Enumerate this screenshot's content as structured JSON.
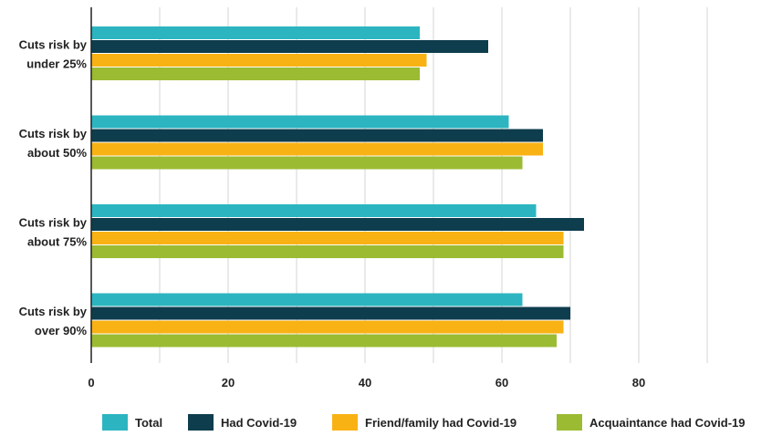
{
  "chart_data": {
    "type": "bar",
    "orientation": "horizontal",
    "categories": [
      [
        "Cuts risk by",
        "under 25%"
      ],
      [
        "Cuts risk by",
        "about 50%"
      ],
      [
        "Cuts risk by",
        "about 75%"
      ],
      [
        "Cuts risk by",
        "over 90%"
      ]
    ],
    "series": [
      {
        "name": "Total",
        "color": "#2cb5c0",
        "values": [
          48,
          61,
          65,
          63
        ]
      },
      {
        "name": "Had Covid-19",
        "color": "#0e3d4d",
        "values": [
          58,
          66,
          72,
          70
        ]
      },
      {
        "name": "Friend/family had Covid-19",
        "color": "#f9b214",
        "values": [
          49,
          66,
          69,
          69
        ]
      },
      {
        "name": "Acquaintance had Covid-19",
        "color": "#9bbb33",
        "values": [
          48,
          63,
          69,
          68
        ]
      }
    ],
    "x_ticks": [
      0,
      20,
      40,
      60,
      80
    ],
    "xlim": [
      0,
      100
    ],
    "grid": true,
    "legend_position": "bottom",
    "title": "",
    "xlabel": "",
    "ylabel": ""
  }
}
